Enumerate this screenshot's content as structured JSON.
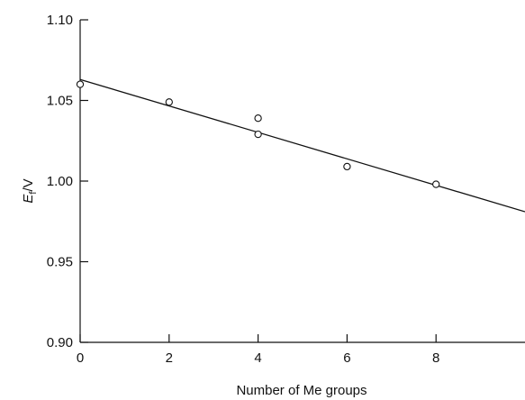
{
  "chart_data": {
    "type": "scatter",
    "xlabel": "Number of Me groups",
    "ylabel": "E",
    "ylabel_sub": "f",
    "ylabel_unit": "/V",
    "xlim": [
      0,
      10
    ],
    "ylim": [
      0.9,
      1.1
    ],
    "xticks": [
      0,
      2,
      4,
      6,
      8
    ],
    "xtick_labels": [
      "0",
      "2",
      "4",
      "6",
      "8"
    ],
    "yticks": [
      0.9,
      0.95,
      1.0,
      1.05,
      1.1
    ],
    "ytick_labels": [
      "0.90",
      "0.95",
      "1.00",
      "1.05",
      "1.10"
    ],
    "grid": false,
    "legend": "none",
    "series": [
      {
        "marker": "open-circle",
        "x": [
          0,
          2,
          4,
          4,
          6,
          8
        ],
        "y": [
          1.06,
          1.049,
          1.039,
          1.029,
          1.009,
          0.998
        ]
      }
    ],
    "fit_line": {
      "x": [
        0,
        10
      ],
      "y": [
        1.063,
        0.981
      ]
    }
  }
}
